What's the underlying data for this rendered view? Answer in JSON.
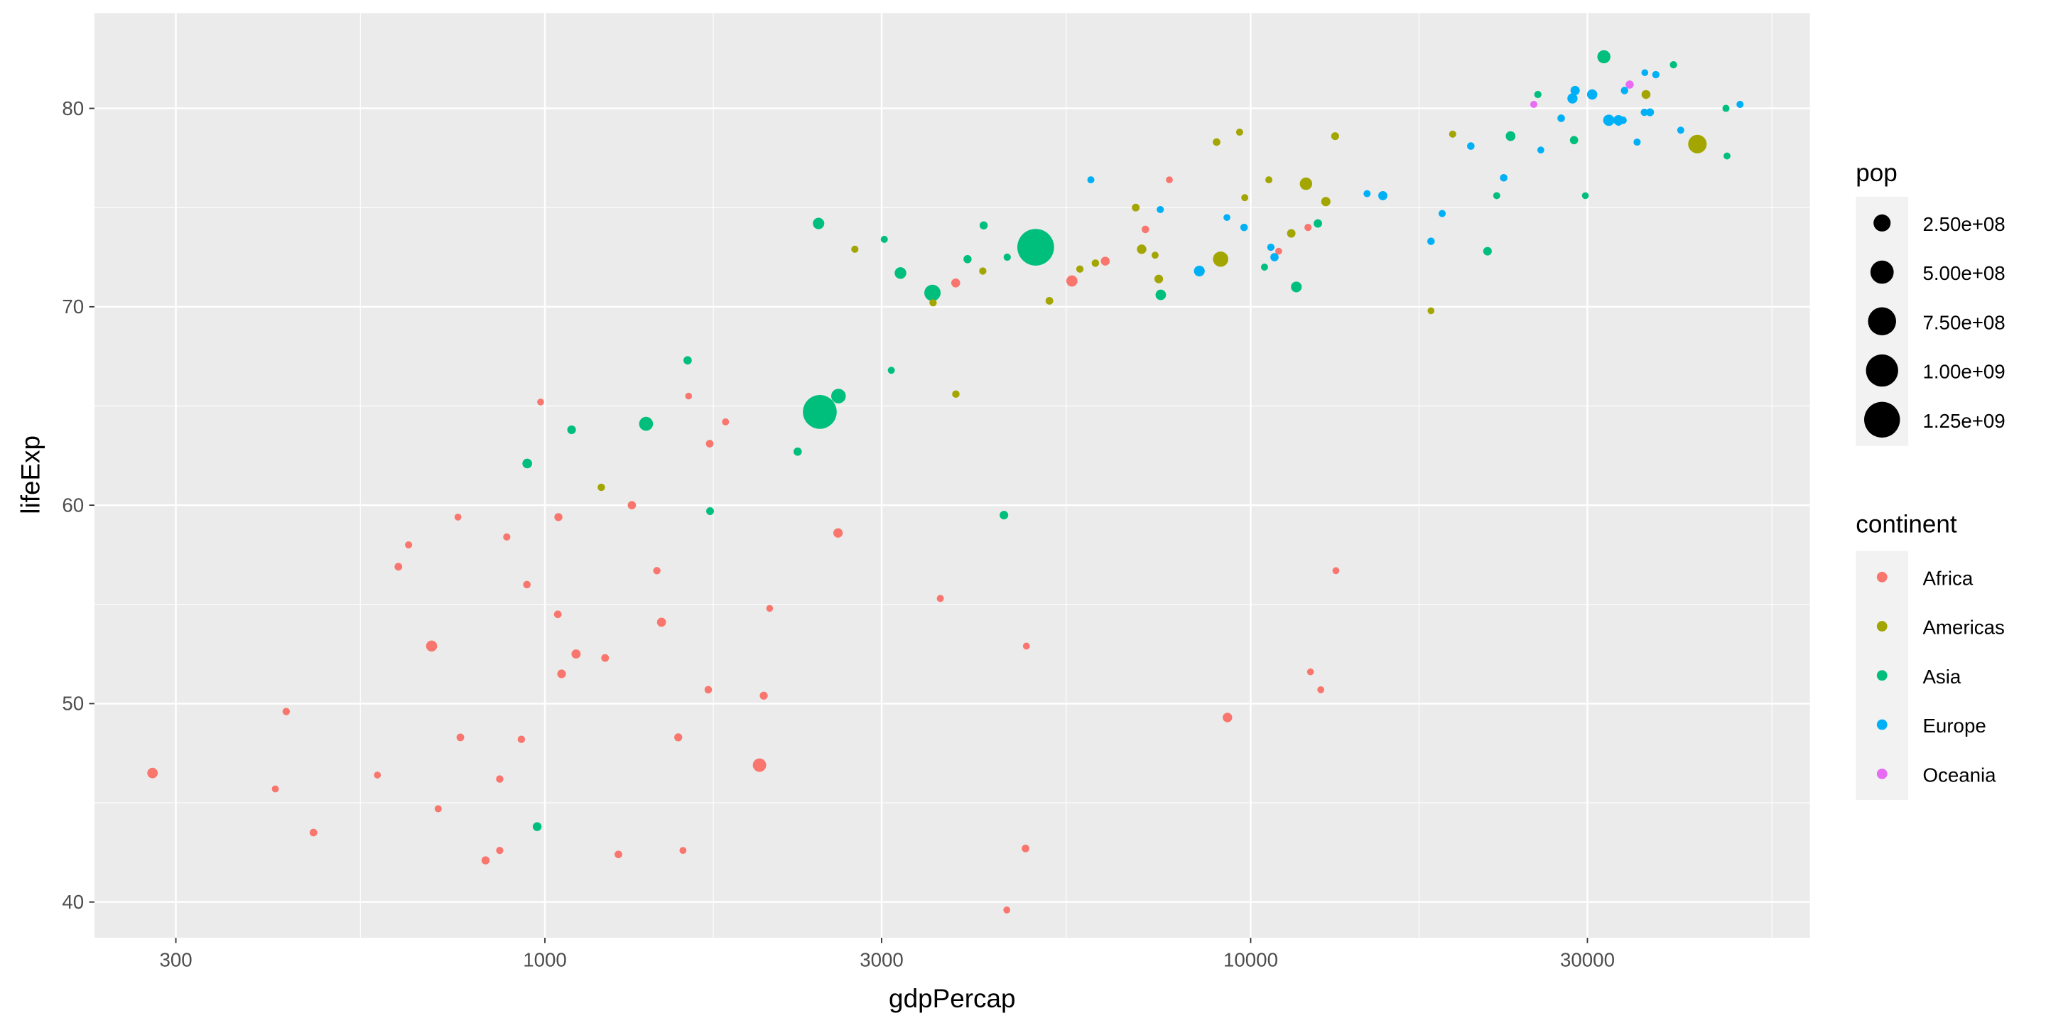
{
  "chart_data": {
    "type": "scatter",
    "xlabel": "gdpPercap",
    "ylabel": "lifeExp",
    "xscale": "log10",
    "xlim": [
      230,
      62000
    ],
    "ylim": [
      38.2,
      84.8
    ],
    "x_ticks": [
      300,
      1000,
      3000,
      10000,
      30000
    ],
    "x_tick_labels": [
      "300",
      "1000",
      "3000",
      "10000",
      "30000"
    ],
    "y_ticks": [
      40,
      50,
      60,
      70,
      80
    ],
    "y_tick_labels": [
      "40",
      "50",
      "60",
      "70",
      "80"
    ],
    "grid": true,
    "legend_position": "right",
    "size_legend": {
      "title": "pop",
      "breaks": [
        250000000,
        500000000,
        750000000,
        1000000000,
        1250000000
      ],
      "labels": [
        "2.50e+08",
        "5.00e+08",
        "7.50e+08",
        "1.00e+09",
        "1.25e+09"
      ]
    },
    "color_legend": {
      "title": "continent",
      "labels": [
        "Africa",
        "Americas",
        "Asia",
        "Europe",
        "Oceania"
      ],
      "colors": [
        "#F8766D",
        "#A3A500",
        "#00BF7D",
        "#00B0F6",
        "#E76BF3"
      ]
    },
    "columns": [
      "gdpPercap",
      "lifeExp",
      "pop_millions",
      "continent"
    ],
    "points": [
      [
        6223,
        72.3,
        33.3,
        "Africa"
      ],
      [
        4797,
        42.7,
        12.4,
        "Africa"
      ],
      [
        1441,
        56.7,
        8.1,
        "Africa"
      ],
      [
        12570,
        50.7,
        1.6,
        "Africa"
      ],
      [
        1217,
        52.3,
        14.3,
        "Africa"
      ],
      [
        430,
        49.6,
        8.4,
        "Africa"
      ],
      [
        2042,
        50.4,
        17.7,
        "Africa"
      ],
      [
        706,
        44.7,
        4.4,
        "Africa"
      ],
      [
        1704,
        50.7,
        10.2,
        "Africa"
      ],
      [
        986,
        65.2,
        0.7,
        "Africa"
      ],
      [
        278,
        46.5,
        64.6,
        "Africa"
      ],
      [
        3633,
        55.3,
        3.8,
        "Africa"
      ],
      [
        1545,
        48.3,
        18.0,
        "Africa"
      ],
      [
        2082,
        54.8,
        0.5,
        "Africa"
      ],
      [
        5581,
        71.3,
        80.3,
        "Africa"
      ],
      [
        12154,
        51.6,
        0.55,
        "Africa"
      ],
      [
        641,
        58.0,
        4.9,
        "Africa"
      ],
      [
        691,
        52.9,
        76.5,
        "Africa"
      ],
      [
        13206,
        56.7,
        1.45,
        "Africa"
      ],
      [
        753,
        59.4,
        1.7,
        "Africa"
      ],
      [
        1328,
        60.0,
        22.9,
        "Africa"
      ],
      [
        943,
        56.0,
        9.9,
        "Africa"
      ],
      [
        579,
        46.4,
        1.5,
        "Africa"
      ],
      [
        1463,
        54.1,
        35.6,
        "Africa"
      ],
      [
        1569,
        42.6,
        2.0,
        "Africa"
      ],
      [
        415,
        45.7,
        3.2,
        "Africa"
      ],
      [
        12057,
        74.0,
        6.0,
        "Africa"
      ],
      [
        1045,
        59.4,
        19.2,
        "Africa"
      ],
      [
        759,
        48.3,
        13.3,
        "Africa"
      ],
      [
        1043,
        54.5,
        12.0,
        "Africa"
      ],
      [
        1803,
        64.2,
        3.3,
        "Africa"
      ],
      [
        10957,
        72.8,
        1.25,
        "Africa"
      ],
      [
        3820,
        71.2,
        33.8,
        "Africa"
      ],
      [
        824,
        42.1,
        20.0,
        "Africa"
      ],
      [
        4811,
        52.9,
        2.1,
        "Africa"
      ],
      [
        620,
        56.9,
        12.9,
        "Africa"
      ],
      [
        2014,
        46.9,
        135,
        "Africa"
      ],
      [
        7670,
        76.4,
        0.8,
        "Africa"
      ],
      [
        863,
        46.2,
        8.9,
        "Africa"
      ],
      [
        1598,
        65.5,
        0.2,
        "Africa"
      ],
      [
        1712,
        63.1,
        12.3,
        "Africa"
      ],
      [
        863,
        42.6,
        6.1,
        "Africa"
      ],
      [
        926,
        48.2,
        9.1,
        "Africa"
      ],
      [
        9270,
        49.3,
        44.0,
        "Africa"
      ],
      [
        2602,
        58.6,
        42.3,
        "Africa"
      ],
      [
        4513,
        39.6,
        1.1,
        "Africa"
      ],
      [
        1107,
        52.5,
        38.1,
        "Africa"
      ],
      [
        883,
        58.4,
        5.7,
        "Africa"
      ],
      [
        7093,
        73.9,
        10.3,
        "Africa"
      ],
      [
        1056,
        51.5,
        29.2,
        "Africa"
      ],
      [
        1271,
        42.4,
        11.7,
        "Africa"
      ],
      [
        470,
        43.5,
        12.3,
        "Africa"
      ],
      [
        12779,
        75.3,
        40.3,
        "Americas"
      ],
      [
        3822,
        65.6,
        9.1,
        "Americas"
      ],
      [
        9066,
        72.4,
        190,
        "Americas"
      ],
      [
        36319,
        80.7,
        33.4,
        "Americas"
      ],
      [
        13172,
        78.6,
        16.3,
        "Americas"
      ],
      [
        7007,
        72.9,
        44.2,
        "Americas"
      ],
      [
        9645,
        78.8,
        4.1,
        "Americas"
      ],
      [
        8948,
        78.3,
        11.4,
        "Americas"
      ],
      [
        6025,
        72.2,
        9.3,
        "Americas"
      ],
      [
        6873,
        75.0,
        13.8,
        "Americas"
      ],
      [
        5728,
        71.9,
        6.9,
        "Americas"
      ],
      [
        5186,
        70.3,
        12.6,
        "Americas"
      ],
      [
        1202,
        60.9,
        8.5,
        "Americas"
      ],
      [
        3548,
        70.2,
        7.5,
        "Americas"
      ],
      [
        7321,
        72.6,
        2.8,
        "Americas"
      ],
      [
        11978,
        76.2,
        108.7,
        "Americas"
      ],
      [
        2749,
        72.9,
        5.7,
        "Americas"
      ],
      [
        9809,
        75.5,
        3.2,
        "Americas"
      ],
      [
        4173,
        71.8,
        6.7,
        "Americas"
      ],
      [
        7409,
        71.4,
        28.7,
        "Americas"
      ],
      [
        19329,
        78.7,
        3.9,
        "Americas"
      ],
      [
        18009,
        69.8,
        1.06,
        "Americas"
      ],
      [
        42952,
        78.2,
        301,
        "Americas"
      ],
      [
        10611,
        76.4,
        3.4,
        "Americas"
      ],
      [
        11416,
        73.7,
        26.1,
        "Americas"
      ],
      [
        975,
        43.8,
        31.9,
        "Asia"
      ],
      [
        29796,
        75.6,
        0.7,
        "Asia"
      ],
      [
        1391,
        64.1,
        150,
        "Asia"
      ],
      [
        1714,
        59.7,
        14.1,
        "Asia"
      ],
      [
        4959,
        73.0,
        1318,
        "Asia"
      ],
      [
        39725,
        82.2,
        6.98,
        "Asia"
      ],
      [
        2452,
        64.7,
        1110,
        "Asia"
      ],
      [
        3541,
        70.7,
        223.5,
        "Asia"
      ],
      [
        11606,
        71.0,
        69.5,
        "Asia"
      ],
      [
        4471,
        59.5,
        27.5,
        "Asia"
      ],
      [
        25523,
        80.7,
        6.4,
        "Asia"
      ],
      [
        31656,
        82.6,
        127.5,
        "Asia"
      ],
      [
        4519,
        72.5,
        6.05,
        "Asia"
      ],
      [
        1593,
        67.3,
        23.3,
        "Asia"
      ],
      [
        23348,
        78.6,
        49.0,
        "Asia"
      ],
      [
        47307,
        77.6,
        2.5,
        "Asia"
      ],
      [
        10461,
        72.0,
        3.9,
        "Asia"
      ],
      [
        12452,
        74.2,
        24.8,
        "Asia"
      ],
      [
        3096,
        66.8,
        2.9,
        "Asia"
      ],
      [
        944,
        62.1,
        47.8,
        "Asia"
      ],
      [
        1091,
        63.8,
        28.9,
        "Asia"
      ],
      [
        22316,
        75.6,
        3.2,
        "Asia"
      ],
      [
        2606,
        65.5,
        169,
        "Asia"
      ],
      [
        3190,
        71.7,
        91.1,
        "Asia"
      ],
      [
        21655,
        72.8,
        27.6,
        "Asia"
      ],
      [
        47143,
        80.0,
        4.55,
        "Asia"
      ],
      [
        3970,
        72.4,
        20.4,
        "Asia"
      ],
      [
        4185,
        74.1,
        19.3,
        "Asia"
      ],
      [
        28718,
        78.4,
        23.2,
        "Asia"
      ],
      [
        7458,
        70.6,
        65.1,
        "Asia"
      ],
      [
        2442,
        74.2,
        85.3,
        "Asia"
      ],
      [
        3026,
        73.4,
        4.0,
        "Asia"
      ],
      [
        2281,
        62.7,
        22.2,
        "Asia"
      ],
      [
        5937,
        76.4,
        3.6,
        "Europe"
      ],
      [
        36126,
        79.8,
        8.2,
        "Europe"
      ],
      [
        33693,
        79.4,
        10.4,
        "Europe"
      ],
      [
        7446,
        74.9,
        4.55,
        "Europe"
      ],
      [
        10681,
        73.0,
        7.3,
        "Europe"
      ],
      [
        14619,
        75.7,
        4.5,
        "Europe"
      ],
      [
        22833,
        76.5,
        10.2,
        "Europe"
      ],
      [
        35278,
        78.3,
        5.5,
        "Europe"
      ],
      [
        33207,
        79.3,
        5.2,
        "Europe"
      ],
      [
        30470,
        80.7,
        61.1,
        "Europe"
      ],
      [
        32170,
        79.4,
        82.4,
        "Europe"
      ],
      [
        27538,
        79.5,
        10.7,
        "Europe"
      ],
      [
        18009,
        73.3,
        9.96,
        "Europe"
      ],
      [
        36181,
        81.8,
        0.3,
        "Europe"
      ],
      [
        40676,
        78.9,
        4.1,
        "Europe"
      ],
      [
        28570,
        80.5,
        58.1,
        "Europe"
      ],
      [
        9254,
        74.5,
        0.68,
        "Europe"
      ],
      [
        36798,
        79.8,
        16.6,
        "Europe"
      ],
      [
        49357,
        80.2,
        4.6,
        "Europe"
      ],
      [
        15390,
        75.6,
        38.5,
        "Europe"
      ],
      [
        20510,
        78.1,
        10.6,
        "Europe"
      ],
      [
        10808,
        72.5,
        22.3,
        "Europe"
      ],
      [
        9787,
        74.0,
        10.2,
        "Europe"
      ],
      [
        18678,
        74.7,
        5.4,
        "Europe"
      ],
      [
        25768,
        77.9,
        2.0,
        "Europe"
      ],
      [
        28821,
        80.9,
        40.4,
        "Europe"
      ],
      [
        33860,
        80.9,
        9.0,
        "Europe"
      ],
      [
        37506,
        81.7,
        7.55,
        "Europe"
      ],
      [
        8458,
        71.8,
        71.2,
        "Europe"
      ],
      [
        33203,
        79.4,
        60.8,
        "Europe"
      ],
      [
        34435,
        81.2,
        20.4,
        "Oceania"
      ],
      [
        25185,
        80.2,
        4.1,
        "Oceania"
      ]
    ]
  }
}
